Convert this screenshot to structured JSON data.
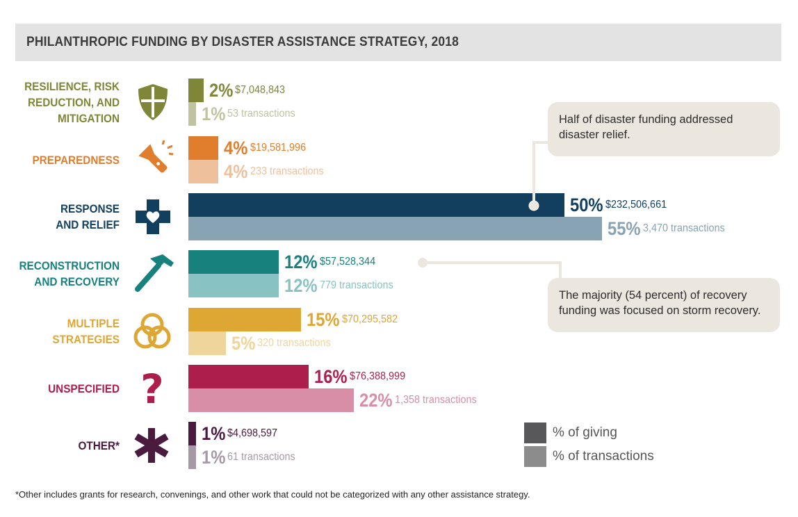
{
  "title": "PHILANTHROPIC FUNDING BY DISASTER ASSISTANCE STRATEGY, 2018",
  "chart_data": {
    "type": "bar",
    "orientation": "horizontal",
    "title": "PHILANTHROPIC FUNDING BY DISASTER ASSISTANCE STRATEGY, 2018",
    "categories": [
      "RESILIENCE, RISK\nREDUCTION, AND\nMITIGATION",
      "PREPAREDNESS",
      "RESPONSE\nAND RELIEF",
      "RECONSTRUCTION\nAND RECOVERY",
      "MULTIPLE\nSTRATEGIES",
      "UNSPECIFIED",
      "OTHER*"
    ],
    "series": [
      {
        "name": "% of giving",
        "values": [
          2,
          4,
          50,
          12,
          15,
          16,
          1
        ],
        "labels": [
          "2%",
          "4%",
          "50%",
          "12%",
          "15%",
          "16%",
          "1%"
        ],
        "amounts": [
          "$7,048,843",
          "$19,581,996",
          "$232,506,661",
          "$57,528,344",
          "$70,295,582",
          "$76,388,999",
          "$4,698,597"
        ]
      },
      {
        "name": "% of transactions",
        "values": [
          1,
          4,
          55,
          12,
          5,
          22,
          1
        ],
        "labels": [
          "1%",
          "4%",
          "55%",
          "12%",
          "5%",
          "22%",
          "1%"
        ],
        "amounts": [
          "53 transactions",
          "233 transactions",
          "3,470 transactions",
          "779 transactions",
          "320 transactions",
          "1,358 transactions",
          "61 transactions"
        ]
      }
    ],
    "colors": [
      {
        "dark": "#7f8637",
        "light": "#c0c3a0"
      },
      {
        "dark": "#e07e2e",
        "light": "#efc09c"
      },
      {
        "dark": "#113f5d",
        "light": "#88a3b3"
      },
      {
        "dark": "#17817e",
        "light": "#88c2c2"
      },
      {
        "dark": "#dea633",
        "light": "#efd49c"
      },
      {
        "dark": "#ac1f4c",
        "light": "#d88ea7"
      },
      {
        "dark": "#4a1a3f",
        "light": "#a798a5"
      }
    ],
    "icons": [
      "shield-icon",
      "flashlight-icon",
      "medical-cross-heart-icon",
      "hammer-icon",
      "venn-circles-icon",
      "question-mark-icon",
      "asterisk-icon"
    ],
    "xlim": [
      0,
      55
    ],
    "grid": false,
    "legend": [
      {
        "label": "% of giving",
        "color": "#58585a"
      },
      {
        "label": "% of transactions",
        "color": "#8c8c8c"
      }
    ],
    "legend_position": "bottom-right"
  },
  "callouts": [
    "Half of disaster funding addressed disaster relief.",
    "The majority (54 percent) of recovery funding was focused on storm recovery."
  ],
  "footnote": "*Other includes grants for research, convenings, and other work that could not be categorized with any other assistance strategy."
}
